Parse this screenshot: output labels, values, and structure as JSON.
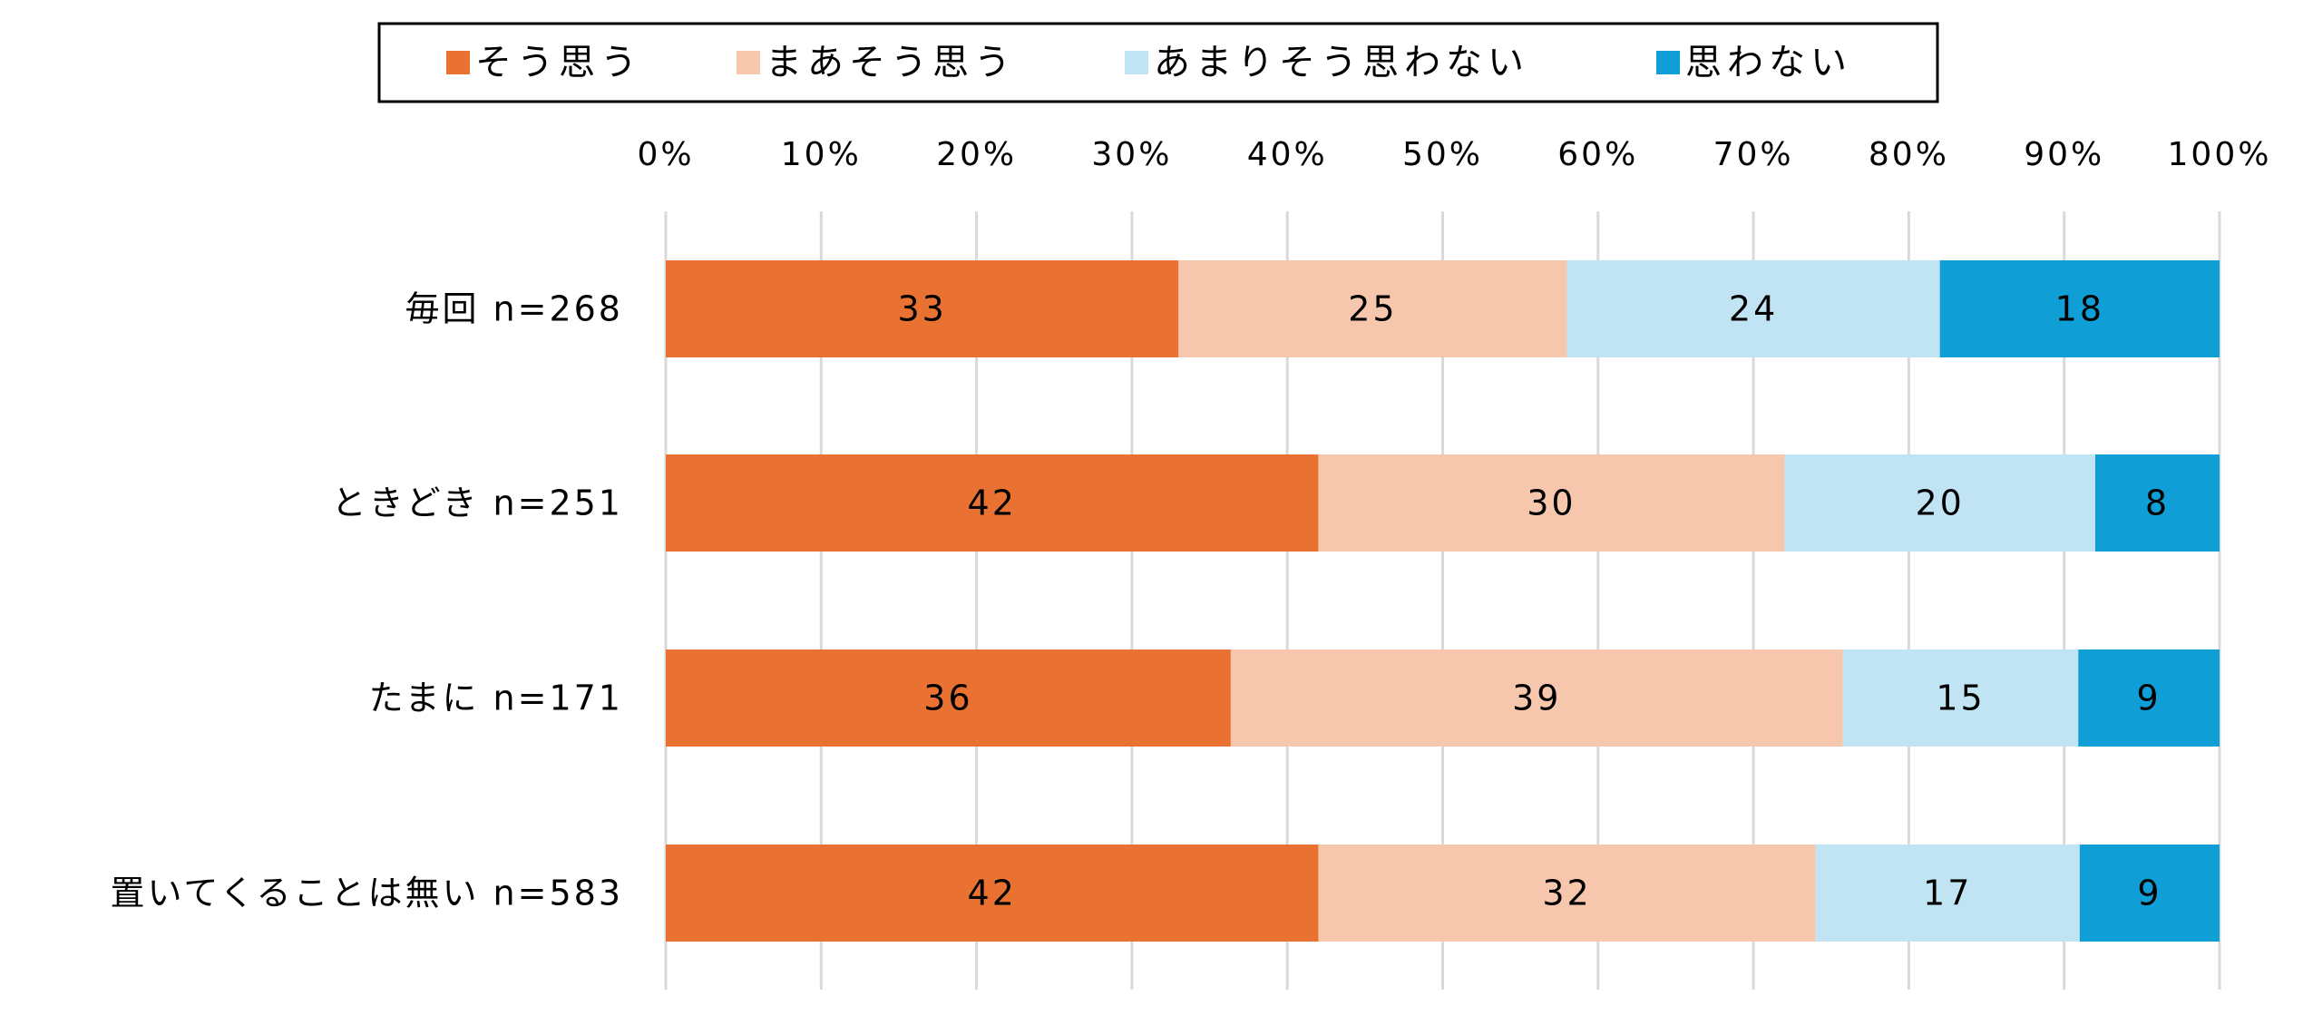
{
  "chart_data": {
    "type": "bar",
    "orientation": "horizontal",
    "stacked": "percent",
    "title": "",
    "xlabel": "",
    "ylabel": "",
    "xlim": [
      0,
      100
    ],
    "x_ticks": [
      "0%",
      "10%",
      "20%",
      "30%",
      "40%",
      "50%",
      "60%",
      "70%",
      "80%",
      "90%",
      "100%"
    ],
    "grid": true,
    "legend_position": "top",
    "categories": [
      "毎回 n=268",
      "ときどき n=251",
      "たまに n=171",
      "置いてくることは無い n=583"
    ],
    "series": [
      {
        "name": "そう思う",
        "color": "#E97132",
        "values": [
          33,
          42,
          36,
          42
        ]
      },
      {
        "name": "まあそう思う",
        "color": "#F6C6AD",
        "values": [
          25,
          30,
          39,
          32
        ]
      },
      {
        "name": "あまりそう思わない",
        "color": "#C1E4F5",
        "values": [
          24,
          20,
          15,
          17
        ]
      },
      {
        "name": "思わない",
        "color": "#0F9ED5",
        "values": [
          18,
          8,
          9,
          9
        ]
      }
    ]
  }
}
